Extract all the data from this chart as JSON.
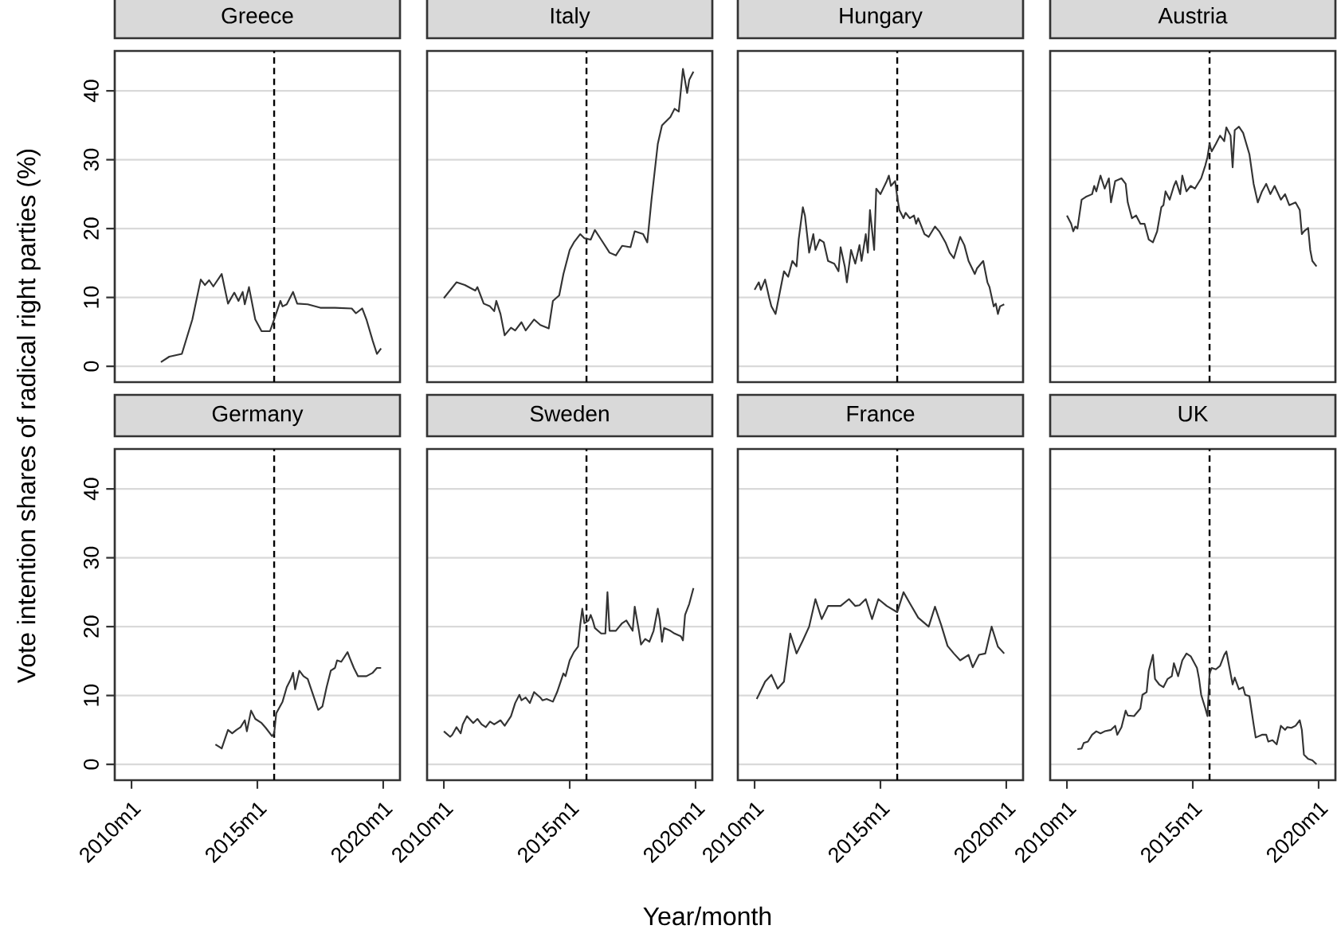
{
  "chart_data": [
    {
      "type": "line",
      "title": "Greece",
      "ylabel": "Vote intention shares of radical right parties (%)",
      "color": "#333333",
      "grid": "y",
      "tick_labels": "y",
      "xlim": [
        "2009-05",
        "2020-09"
      ],
      "ylim": [
        -2.3,
        45.8
      ],
      "yticks": [
        0,
        10,
        20,
        30,
        40
      ],
      "ref_lines": [
        {
          "axis": "x",
          "value": "2015-09",
          "line_style": "dashed"
        }
      ],
      "x": [
        "2011-03",
        "2011-07",
        "2012-01",
        "2012-06",
        "2012-10",
        "2012-12",
        "2013-02",
        "2013-04",
        "2013-08",
        "2013-11",
        "2014-02",
        "2014-04",
        "2014-06",
        "2014-07",
        "2014-09",
        "2014-12",
        "2015-03",
        "2015-07",
        "2015-09",
        "2015-12",
        "2016-01",
        "2016-03",
        "2016-06",
        "2016-08",
        "2017-01",
        "2017-07",
        "2018-02",
        "2018-10",
        "2018-12",
        "2019-03",
        "2019-05",
        "2019-08",
        "2019-10",
        "2019-12"
      ],
      "values": [
        0.6,
        1.4,
        1.8,
        6.8,
        12.6,
        11.8,
        12.5,
        11.6,
        13.4,
        9.1,
        10.7,
        9.5,
        10.8,
        9.0,
        11.5,
        6.8,
        5.1,
        5.1,
        6.8,
        9.5,
        8.7,
        9.0,
        10.8,
        9.1,
        9.0,
        8.5,
        8.5,
        8.4,
        7.7,
        8.4,
        6.8,
        3.7,
        1.8,
        2.6
      ]
    },
    {
      "type": "line",
      "title": "Italy",
      "color": "#333333",
      "grid": "y",
      "tick_labels": false,
      "xlim": [
        "2009-05",
        "2020-09"
      ],
      "ylim": [
        -2.3,
        45.8
      ],
      "yticks": [
        0,
        10,
        20,
        30,
        40
      ],
      "ref_lines": [
        {
          "axis": "x",
          "value": "2015-09",
          "line_style": "dashed"
        }
      ],
      "x": [
        "2010-01",
        "2010-07",
        "2010-11",
        "2011-04",
        "2011-05",
        "2011-08",
        "2011-11",
        "2012-01",
        "2012-02",
        "2012-04",
        "2012-06",
        "2012-09",
        "2012-11",
        "2013-02",
        "2013-04",
        "2013-08",
        "2013-11",
        "2014-03",
        "2014-05",
        "2014-08",
        "2014-10",
        "2015-01",
        "2015-03",
        "2015-06",
        "2015-08",
        "2015-11",
        "2016-01",
        "2016-04",
        "2016-08",
        "2016-11",
        "2017-02",
        "2017-06",
        "2017-08",
        "2017-12",
        "2018-02",
        "2018-04",
        "2018-07",
        "2018-09",
        "2019-01",
        "2019-03",
        "2019-05",
        "2019-07",
        "2019-09",
        "2019-10",
        "2019-12"
      ],
      "values": [
        9.9,
        12.2,
        11.8,
        11.0,
        11.5,
        9.1,
        8.7,
        8.0,
        9.5,
        7.6,
        4.5,
        5.6,
        5.2,
        6.4,
        5.2,
        6.8,
        6.0,
        5.5,
        9.5,
        10.3,
        13.4,
        16.9,
        18.0,
        19.2,
        18.6,
        18.4,
        19.8,
        18.4,
        16.5,
        16.1,
        17.5,
        17.3,
        19.6,
        19.2,
        18.0,
        24.2,
        32.3,
        35.0,
        36.2,
        37.4,
        37.0,
        43.2,
        39.7,
        41.6,
        42.8
      ]
    },
    {
      "type": "line",
      "title": "Hungary",
      "color": "#333333",
      "grid": "y",
      "tick_labels": false,
      "xlim": [
        "2009-05",
        "2020-09"
      ],
      "ylim": [
        -2.3,
        45.8
      ],
      "yticks": [
        0,
        10,
        20,
        30,
        40
      ],
      "ref_lines": [
        {
          "axis": "x",
          "value": "2015-09",
          "line_style": "dashed"
        }
      ],
      "x": [
        "2010-01",
        "2010-03",
        "2010-04",
        "2010-06",
        "2010-08",
        "2010-09",
        "2010-11",
        "2011-01",
        "2011-03",
        "2011-05",
        "2011-07",
        "2011-09",
        "2011-10",
        "2011-12",
        "2012-01",
        "2012-03",
        "2012-05",
        "2012-06",
        "2012-08",
        "2012-10",
        "2012-12",
        "2013-03",
        "2013-05",
        "2013-06",
        "2013-08",
        "2013-09",
        "2013-11",
        "2014-01",
        "2014-03",
        "2014-04",
        "2014-06",
        "2014-07",
        "2014-08",
        "2014-10",
        "2014-11",
        "2015-01",
        "2015-04",
        "2015-05",
        "2015-06",
        "2015-08",
        "2015-09",
        "2015-10",
        "2015-12",
        "2016-01",
        "2016-03",
        "2016-05",
        "2016-06",
        "2016-07",
        "2016-10",
        "2016-12",
        "2017-03",
        "2017-05",
        "2017-08",
        "2017-10",
        "2017-12",
        "2018-03",
        "2018-05",
        "2018-07",
        "2018-10",
        "2018-11",
        "2019-02",
        "2019-04",
        "2019-05",
        "2019-07",
        "2019-08",
        "2019-09",
        "2019-10",
        "2019-12"
      ],
      "values": [
        11.1,
        12.2,
        11.1,
        12.6,
        9.9,
        8.7,
        7.6,
        10.7,
        13.8,
        13.0,
        15.3,
        14.5,
        18.4,
        23.1,
        21.9,
        16.5,
        19.2,
        16.9,
        18.4,
        18.0,
        15.3,
        14.9,
        13.8,
        17.3,
        14.5,
        12.2,
        16.9,
        14.9,
        17.6,
        15.3,
        19.2,
        16.5,
        22.7,
        16.9,
        25.8,
        25.0,
        26.9,
        27.7,
        26.2,
        26.9,
        24.6,
        22.7,
        21.5,
        22.3,
        21.5,
        21.9,
        20.7,
        21.5,
        19.2,
        18.8,
        20.3,
        19.6,
        18.0,
        16.5,
        15.7,
        18.8,
        17.6,
        15.3,
        13.4,
        14.2,
        15.3,
        12.2,
        11.5,
        8.7,
        9.1,
        7.6,
        8.7,
        9.0
      ]
    },
    {
      "type": "line",
      "title": "Austria",
      "color": "#333333",
      "grid": "y",
      "tick_labels": false,
      "xlim": [
        "2009-05",
        "2020-09"
      ],
      "ylim": [
        -2.3,
        45.8
      ],
      "yticks": [
        0,
        10,
        20,
        30,
        40
      ],
      "ref_lines": [
        {
          "axis": "x",
          "value": "2015-09",
          "line_style": "dashed"
        }
      ],
      "x": [
        "2010-01",
        "2010-03",
        "2010-04",
        "2010-05",
        "2010-06",
        "2010-08",
        "2010-10",
        "2011-01",
        "2011-02",
        "2011-03",
        "2011-05",
        "2011-07",
        "2011-09",
        "2011-10",
        "2011-12",
        "2012-03",
        "2012-05",
        "2012-06",
        "2012-08",
        "2012-10",
        "2012-12",
        "2013-02",
        "2013-04",
        "2013-06",
        "2013-08",
        "2013-10",
        "2013-11",
        "2013-12",
        "2014-02",
        "2014-04",
        "2014-05",
        "2014-07",
        "2014-08",
        "2014-10",
        "2014-12",
        "2015-02",
        "2015-05",
        "2015-07",
        "2015-08",
        "2015-09",
        "2015-10",
        "2015-12",
        "2016-02",
        "2016-04",
        "2016-05",
        "2016-07",
        "2016-08",
        "2016-09",
        "2016-11",
        "2017-01",
        "2017-04",
        "2017-06",
        "2017-08",
        "2017-10",
        "2017-12",
        "2018-02",
        "2018-04",
        "2018-07",
        "2018-09",
        "2018-11",
        "2019-02",
        "2019-04",
        "2019-05",
        "2019-06",
        "2019-08",
        "2019-09",
        "2019-10",
        "2019-12"
      ],
      "values": [
        21.9,
        20.7,
        19.6,
        20.3,
        20.0,
        24.2,
        24.6,
        25.0,
        26.2,
        25.4,
        27.7,
        25.8,
        27.3,
        23.8,
        26.9,
        27.3,
        26.5,
        23.8,
        21.5,
        21.9,
        20.7,
        20.7,
        18.4,
        18.0,
        19.6,
        23.1,
        23.4,
        25.4,
        24.2,
        26.2,
        26.9,
        25.0,
        27.7,
        25.4,
        26.2,
        25.8,
        27.3,
        29.2,
        30.4,
        32.3,
        31.2,
        32.3,
        33.5,
        32.7,
        34.7,
        33.5,
        28.9,
        34.3,
        34.8,
        33.9,
        30.8,
        26.5,
        23.8,
        25.4,
        26.5,
        25.0,
        26.2,
        24.2,
        25.0,
        23.4,
        23.8,
        22.7,
        19.2,
        19.6,
        20.1,
        16.9,
        15.3,
        14.5
      ]
    },
    {
      "type": "line",
      "title": "Germany",
      "color": "#333333",
      "grid": "y",
      "xlim": [
        "2009-05",
        "2020-09"
      ],
      "ylim": [
        -2.3,
        45.8
      ],
      "xticks": [
        {
          "value": "2010-01",
          "label": "2010m1"
        },
        {
          "value": "2015-01",
          "label": "2015m1"
        },
        {
          "value": "2020-01",
          "label": "2020m1"
        }
      ],
      "yticks": [
        0,
        10,
        20,
        30,
        40
      ],
      "ref_lines": [
        {
          "axis": "x",
          "value": "2015-09",
          "line_style": "dashed"
        }
      ],
      "x": [
        "2013-05",
        "2013-07",
        "2013-08",
        "2013-11",
        "2014-01",
        "2014-03",
        "2014-05",
        "2014-07",
        "2014-08",
        "2014-10",
        "2014-12",
        "2015-03",
        "2015-05",
        "2015-08",
        "2015-09",
        "2015-10",
        "2016-01",
        "2016-03",
        "2016-05",
        "2016-06",
        "2016-07",
        "2016-09",
        "2016-11",
        "2017-01",
        "2017-04",
        "2017-06",
        "2017-08",
        "2017-10",
        "2017-12",
        "2018-02",
        "2018-03",
        "2018-05",
        "2018-08",
        "2018-09",
        "2018-11",
        "2019-01",
        "2019-05",
        "2019-08",
        "2019-10",
        "2019-12"
      ],
      "values": [
        2.9,
        2.5,
        2.3,
        5.0,
        4.5,
        5.0,
        5.4,
        6.4,
        4.8,
        7.8,
        6.6,
        6.0,
        5.3,
        4.1,
        4.5,
        7.4,
        9.1,
        11.2,
        12.4,
        13.3,
        10.9,
        13.6,
        12.8,
        12.4,
        9.7,
        7.9,
        8.4,
        11.2,
        13.6,
        14.0,
        15.1,
        14.9,
        16.3,
        15.5,
        14.0,
        12.8,
        12.8,
        13.3,
        14.0,
        14.0
      ]
    },
    {
      "type": "line",
      "title": "Sweden",
      "xlabel": "Year/month",
      "color": "#333333",
      "grid": "y",
      "tick_labels": "x",
      "xlim": [
        "2009-05",
        "2020-09"
      ],
      "ylim": [
        -2.3,
        45.8
      ],
      "xticks": [
        {
          "value": "2010-01",
          "label": "2010m1"
        },
        {
          "value": "2015-01",
          "label": "2015m1"
        },
        {
          "value": "2020-01",
          "label": "2020m1"
        }
      ],
      "yticks": [
        0,
        10,
        20,
        30,
        40
      ],
      "ref_lines": [
        {
          "axis": "x",
          "value": "2015-09",
          "line_style": "dashed"
        }
      ],
      "x": [
        "2010-01",
        "2010-04",
        "2010-05",
        "2010-07",
        "2010-09",
        "2010-10",
        "2010-12",
        "2011-03",
        "2011-05",
        "2011-07",
        "2011-09",
        "2011-11",
        "2012-01",
        "2012-04",
        "2012-06",
        "2012-09",
        "2012-11",
        "2013-01",
        "2013-02",
        "2013-04",
        "2013-06",
        "2013-08",
        "2013-11",
        "2013-12",
        "2014-02",
        "2014-05",
        "2014-07",
        "2014-10",
        "2014-11",
        "2015-01",
        "2015-03",
        "2015-05",
        "2015-06",
        "2015-07",
        "2015-08",
        "2015-10",
        "2015-11",
        "2015-12",
        "2016-01",
        "2016-04",
        "2016-06",
        "2016-07",
        "2016-08",
        "2016-11",
        "2017-02",
        "2017-04",
        "2017-07",
        "2017-08",
        "2017-10",
        "2017-11",
        "2018-01",
        "2018-03",
        "2018-05",
        "2018-07",
        "2018-08",
        "2018-09",
        "2018-10",
        "2019-01",
        "2019-03",
        "2019-06",
        "2019-07",
        "2019-08",
        "2019-10",
        "2019-12"
      ],
      "values": [
        4.8,
        4.0,
        4.3,
        5.4,
        4.5,
        5.8,
        7.0,
        6.0,
        6.6,
        5.8,
        5.4,
        6.2,
        5.8,
        6.4,
        5.6,
        7.0,
        8.9,
        10.1,
        9.3,
        9.7,
        8.9,
        10.5,
        9.7,
        9.3,
        9.5,
        9.1,
        10.5,
        13.2,
        12.8,
        15.1,
        16.3,
        17.1,
        20.2,
        22.6,
        20.5,
        20.9,
        21.7,
        20.9,
        19.8,
        19.0,
        19.0,
        25.0,
        19.4,
        19.4,
        20.5,
        20.9,
        19.4,
        22.9,
        19.4,
        17.4,
        18.2,
        17.8,
        19.4,
        22.6,
        20.9,
        17.8,
        19.8,
        19.4,
        19.0,
        18.6,
        18.0,
        21.7,
        23.3,
        25.6
      ]
    },
    {
      "type": "line",
      "title": "France",
      "color": "#333333",
      "grid": "y",
      "tick_labels": "x",
      "xlim": [
        "2009-05",
        "2020-09"
      ],
      "ylim": [
        -2.3,
        45.8
      ],
      "xticks": [
        {
          "value": "2010-01",
          "label": "2010m1"
        },
        {
          "value": "2015-01",
          "label": "2015m1"
        },
        {
          "value": "2020-01",
          "label": "2020m1"
        }
      ],
      "yticks": [
        0,
        10,
        20,
        30,
        40
      ],
      "ref_lines": [
        {
          "axis": "x",
          "value": "2015-09",
          "line_style": "dashed"
        }
      ],
      "x": [
        "2010-02",
        "2010-03",
        "2010-06",
        "2010-09",
        "2010-12",
        "2011-03",
        "2011-06",
        "2011-09",
        "2011-12",
        "2012-03",
        "2012-06",
        "2012-09",
        "2012-12",
        "2013-06",
        "2013-10",
        "2014-01",
        "2014-03",
        "2014-06",
        "2014-09",
        "2014-12",
        "2015-04",
        "2015-09",
        "2015-12",
        "2016-03",
        "2016-07",
        "2016-12",
        "2017-03",
        "2017-06",
        "2017-09",
        "2017-12",
        "2018-03",
        "2018-07",
        "2018-09",
        "2018-12",
        "2019-03",
        "2019-06",
        "2019-09",
        "2019-12"
      ],
      "values": [
        9.5,
        10.1,
        12.0,
        13.0,
        11.0,
        12.0,
        19.0,
        16.1,
        18.0,
        20.0,
        24.0,
        21.1,
        23.0,
        23.0,
        24.0,
        23.0,
        23.1,
        24.0,
        21.1,
        24.0,
        23.0,
        22.1,
        25.0,
        23.4,
        21.3,
        20.0,
        22.9,
        20.2,
        17.2,
        16.1,
        15.1,
        15.9,
        14.1,
        15.9,
        16.1,
        20.0,
        17.1,
        16.1
      ]
    },
    {
      "type": "line",
      "title": "UK",
      "color": "#333333",
      "grid": "y",
      "tick_labels": "x",
      "xlim": [
        "2009-05",
        "2020-09"
      ],
      "ylim": [
        -2.3,
        45.8
      ],
      "xticks": [
        {
          "value": "2010-01",
          "label": "2010m1"
        },
        {
          "value": "2015-01",
          "label": "2015m1"
        },
        {
          "value": "2020-01",
          "label": "2020m1"
        }
      ],
      "yticks": [
        0,
        10,
        20,
        30,
        40
      ],
      "ref_lines": [
        {
          "axis": "x",
          "value": "2015-09",
          "line_style": "dashed"
        }
      ],
      "x": [
        "2010-06",
        "2010-08",
        "2010-09",
        "2010-11",
        "2011-01",
        "2011-03",
        "2011-05",
        "2011-07",
        "2011-10",
        "2011-12",
        "2012-01",
        "2012-03",
        "2012-05",
        "2012-06",
        "2012-09",
        "2012-12",
        "2013-01",
        "2013-03",
        "2013-04",
        "2013-06",
        "2013-07",
        "2013-09",
        "2013-11",
        "2014-01",
        "2014-03",
        "2014-04",
        "2014-06",
        "2014-08",
        "2014-10",
        "2014-12",
        "2015-03",
        "2015-04",
        "2015-05",
        "2015-07",
        "2015-08",
        "2015-09",
        "2015-10",
        "2015-12",
        "2016-02",
        "2016-04",
        "2016-05",
        "2016-07",
        "2016-08",
        "2016-09",
        "2016-11",
        "2017-01",
        "2017-02",
        "2017-04",
        "2017-06",
        "2017-07",
        "2017-10",
        "2017-12",
        "2018-01",
        "2018-03",
        "2018-05",
        "2018-07",
        "2018-09",
        "2018-10",
        "2018-12",
        "2019-02",
        "2019-04",
        "2019-05",
        "2019-06",
        "2019-08",
        "2019-10",
        "2019-12"
      ],
      "values": [
        2.2,
        2.3,
        3.1,
        3.3,
        4.3,
        4.8,
        4.5,
        4.8,
        5.0,
        5.6,
        4.3,
        5.4,
        7.8,
        7.1,
        7.0,
        8.1,
        10.1,
        10.5,
        13.6,
        15.9,
        12.4,
        11.6,
        11.2,
        12.4,
        12.8,
        14.7,
        12.8,
        15.1,
        16.1,
        15.7,
        14.0,
        12.4,
        10.1,
        8.1,
        7.0,
        13.2,
        14.0,
        13.8,
        14.3,
        15.9,
        16.4,
        13.2,
        11.6,
        12.6,
        10.9,
        11.2,
        10.1,
        9.9,
        5.8,
        3.9,
        4.3,
        4.3,
        3.3,
        3.5,
        2.9,
        5.6,
        5.0,
        5.4,
        5.3,
        5.6,
        6.4,
        5.0,
        1.4,
        0.8,
        0.6,
        0.0
      ]
    }
  ]
}
